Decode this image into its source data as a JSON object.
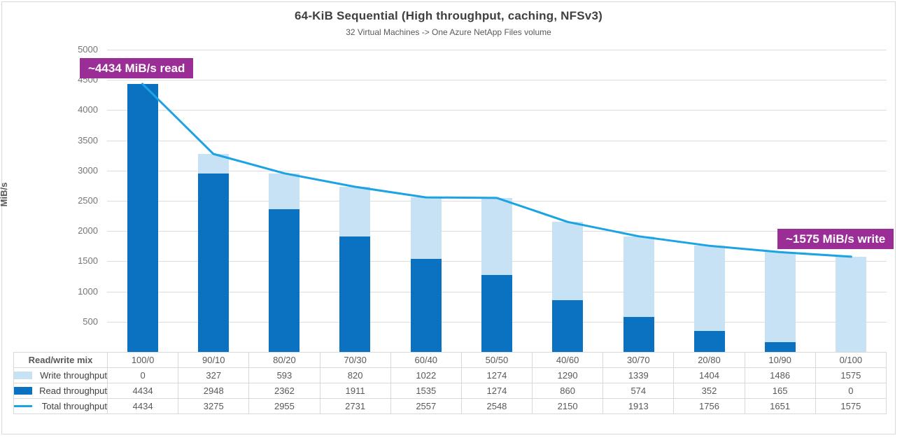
{
  "title": "64-KiB Sequential (High throughput, caching, NFSv3)",
  "subtitle": "32 Virtual Machines -> One Azure NetApp Files volume",
  "annotations": {
    "read": "~4434 MiB/s read",
    "write": "~1575 MiB/s write"
  },
  "colors": {
    "read_bar": "#0B72C2",
    "write_bar": "#C6E2F4",
    "total_line": "#1BA3E4",
    "annotation_bg": "#9B2D96",
    "gridline": "#DCDCDC",
    "axis_text": "#767676",
    "title_text": "#404040"
  },
  "chart_data": {
    "type": "bar",
    "stacked": true,
    "title": "64-KiB Sequential (High throughput, caching, NFSv3)",
    "subtitle": "32 Virtual Machines -> One Azure NetApp Files volume",
    "xlabel": "",
    "ylabel": "MiB/s",
    "ylim": [
      0,
      5000
    ],
    "ytick_step": 500,
    "yticks": [
      500,
      1000,
      1500,
      2000,
      2500,
      3000,
      3500,
      4000,
      4500,
      5000
    ],
    "grid": true,
    "legend_position": "data-table-left",
    "x_header": "Read/write mix",
    "categories": [
      "100/0",
      "90/10",
      "80/20",
      "70/30",
      "60/40",
      "50/50",
      "40/60",
      "30/70",
      "20/80",
      "10/90",
      "0/100"
    ],
    "series": [
      {
        "name": "Write throughput",
        "type": "bar",
        "values": [
          0,
          327,
          593,
          820,
          1022,
          1274,
          1290,
          1339,
          1404,
          1486,
          1575
        ]
      },
      {
        "name": "Read throughput",
        "type": "bar",
        "values": [
          4434,
          2948,
          2362,
          1911,
          1535,
          1274,
          860,
          574,
          352,
          165,
          0
        ]
      },
      {
        "name": "Total throughput",
        "type": "line",
        "values": [
          4434,
          3275,
          2955,
          2731,
          2557,
          2548,
          2150,
          1913,
          1756,
          1651,
          1575
        ]
      }
    ]
  }
}
